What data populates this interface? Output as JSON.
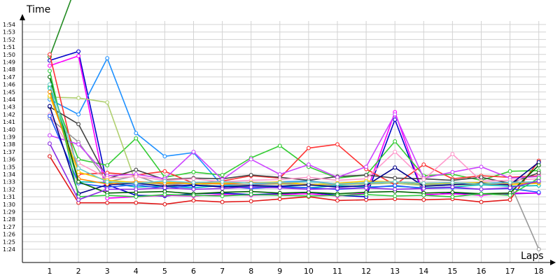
{
  "chart_data": {
    "type": "line",
    "title": "",
    "xlabel": "Laps",
    "ylabel": "Time",
    "grid": true,
    "x": [
      1,
      2,
      3,
      4,
      5,
      6,
      7,
      8,
      9,
      10,
      11,
      12,
      13,
      14,
      15,
      16,
      17,
      18
    ],
    "y_tick_labels": [
      "1:24",
      "1:25",
      "1:26",
      "1:27",
      "1:28",
      "1:29",
      "1:30",
      "1:31",
      "1:32",
      "1:33",
      "1:34",
      "1:35",
      "1:36",
      "1:37",
      "1:38",
      "1:39",
      "1:40",
      "1:41",
      "1:42",
      "1:43",
      "1:44",
      "1:45",
      "1:46",
      "1:47",
      "1:48",
      "1:49",
      "1:50",
      "1:51",
      "1:52",
      "1:53",
      "1:54"
    ],
    "y_unit": "seconds",
    "ylim": [
      84,
      114.6
    ],
    "series": [
      {
        "color": "#228b22",
        "values": [
          109.7,
          120.0,
          null,
          null,
          null,
          null,
          null,
          null,
          null,
          null,
          null,
          null,
          null,
          null,
          null,
          null,
          null,
          null
        ]
      },
      {
        "color": "#e11a1a",
        "values": [
          96.4,
          90.2,
          90.2,
          90.2,
          90.0,
          90.5,
          90.3,
          90.4,
          90.7,
          91.0,
          90.5,
          90.6,
          90.7,
          90.6,
          90.7,
          90.3,
          90.6,
          95.8
        ]
      },
      {
        "color": "#0000cc",
        "values": [
          109.2,
          110.4,
          92.6,
          91.2,
          91.1,
          91.4,
          91.5,
          91.3,
          91.4,
          91.6,
          91.2,
          91.0,
          101.3,
          91.2,
          91.5,
          91.4,
          91.4,
          91.5
        ]
      },
      {
        "color": "#1e90ff",
        "values": [
          104.0,
          102.0,
          109.5,
          99.5,
          96.4,
          96.9,
          92.5,
          92.6,
          93.0,
          93.1,
          92.7,
          92.8,
          93.0,
          92.6,
          92.7,
          92.8,
          92.9,
          93.0
        ]
      },
      {
        "color": "#ff00ff",
        "values": [
          108.5,
          109.8,
          90.8,
          91.0,
          91.2,
          91.1,
          91.3,
          91.2,
          91.3,
          91.4,
          91.1,
          91.5,
          102.3,
          91.3,
          91.4,
          91.2,
          91.5,
          91.5
        ]
      },
      {
        "color": "#33cc33",
        "values": [
          105.7,
          96.0,
          95.2,
          98.8,
          93.6,
          94.3,
          93.9,
          96.2,
          97.8,
          95.0,
          93.5,
          93.9,
          98.4,
          93.8,
          94.0,
          93.2,
          94.4,
          94.5
        ]
      },
      {
        "color": "#b0d070",
        "values": [
          104.3,
          104.2,
          103.6,
          92.8,
          92.7,
          92.8,
          92.4,
          92.6,
          92.7,
          92.5,
          92.6,
          92.7,
          92.8,
          92.5,
          92.6,
          92.6,
          92.8,
          92.9
        ]
      },
      {
        "color": "#ff3333",
        "values": [
          110.0,
          94.0,
          94.2,
          93.9,
          94.4,
          92.8,
          93.1,
          93.8,
          93.5,
          97.5,
          98.0,
          94.7,
          92.6,
          95.3,
          93.4,
          93.8,
          93.6,
          93.8
        ]
      },
      {
        "color": "#444444",
        "values": [
          103.0,
          100.7,
          93.4,
          94.6,
          93.3,
          93.5,
          93.4,
          93.9,
          93.6,
          93.2,
          93.7,
          93.9,
          93.5,
          93.4,
          93.2,
          93.6,
          92.8,
          94.2
        ]
      },
      {
        "color": "#999999",
        "values": [
          101.5,
          98.3,
          93.0,
          93.8,
          92.5,
          92.9,
          92.7,
          92.6,
          92.8,
          92.7,
          92.6,
          92.9,
          93.0,
          92.8,
          92.9,
          92.6,
          92.8,
          84.0
        ]
      },
      {
        "color": "#cc44ff",
        "values": [
          99.2,
          98.0,
          93.8,
          94.0,
          93.4,
          97.0,
          93.3,
          96.0,
          94.0,
          95.3,
          93.6,
          95.0,
          102.0,
          93.5,
          94.3,
          95.0,
          93.5,
          93.7
        ]
      },
      {
        "color": "#ff99cc",
        "values": [
          102.0,
          95.5,
          93.5,
          93.7,
          93.2,
          93.4,
          93.0,
          93.2,
          93.3,
          93.6,
          93.2,
          93.4,
          97.0,
          93.3,
          96.7,
          93.1,
          93.2,
          93.4
        ]
      },
      {
        "color": "#00bbbb",
        "values": [
          105.5,
          93.0,
          92.9,
          92.3,
          92.4,
          92.2,
          92.5,
          92.3,
          92.4,
          92.2,
          92.5,
          92.3,
          92.4,
          92.2,
          92.3,
          92.6,
          92.4,
          92.5
        ]
      },
      {
        "color": "#2255ff",
        "values": [
          101.8,
          92.8,
          92.3,
          92.6,
          92.1,
          92.5,
          92.4,
          92.1,
          92.3,
          92.2,
          92.0,
          92.2,
          92.5,
          92.1,
          92.2,
          92.0,
          92.1,
          91.6
        ]
      },
      {
        "color": "#ffcc00",
        "values": [
          104.5,
          94.3,
          93.2,
          92.9,
          93.0,
          92.7,
          92.9,
          92.8,
          93.0,
          92.6,
          92.8,
          93.1,
          93.0,
          92.7,
          92.8,
          92.9,
          92.6,
          92.8
        ]
      },
      {
        "color": "#000088",
        "values": [
          103.1,
          91.4,
          92.6,
          92.8,
          92.4,
          92.6,
          92.3,
          92.5,
          92.4,
          92.6,
          92.3,
          92.5,
          94.9,
          92.4,
          92.6,
          92.8,
          92.6,
          95.6
        ]
      },
      {
        "color": "#ff8800",
        "values": [
          105.0,
          93.4,
          92.7,
          93.0,
          92.8,
          92.9,
          92.7,
          92.9,
          92.8,
          93.0,
          92.7,
          92.9,
          93.0,
          92.8,
          92.9,
          92.7,
          92.8,
          92.9
        ]
      },
      {
        "color": "#006600",
        "values": [
          107.0,
          93.0,
          91.5,
          91.6,
          91.7,
          91.4,
          91.6,
          91.7,
          91.5,
          91.6,
          91.4,
          91.6,
          91.7,
          91.5,
          91.6,
          91.4,
          91.5,
          95.2
        ]
      },
      {
        "color": "#2ecc40",
        "values": [
          107.8,
          91.0,
          91.2,
          91.0,
          91.3,
          91.2,
          91.1,
          91.3,
          91.2,
          91.1,
          91.2,
          91.3,
          91.1,
          91.2,
          91.0,
          91.4,
          91.2,
          93.5
        ]
      },
      {
        "color": "#66cccc",
        "values": [
          106.0,
          94.8,
          93.0,
          92.8,
          93.1,
          92.9,
          93.0,
          92.8,
          92.9,
          93.0,
          92.7,
          92.9,
          93.0,
          92.8,
          92.9,
          92.7,
          92.9,
          93.0
        ]
      },
      {
        "color": "#8a2be2",
        "values": [
          98.1,
          90.6,
          92.0,
          92.0,
          92.2,
          92.0,
          92.1,
          92.3,
          92.2,
          92.0,
          92.1,
          92.2,
          92.0,
          92.1,
          92.3,
          92.0,
          92.2,
          93.1
        ]
      }
    ]
  }
}
